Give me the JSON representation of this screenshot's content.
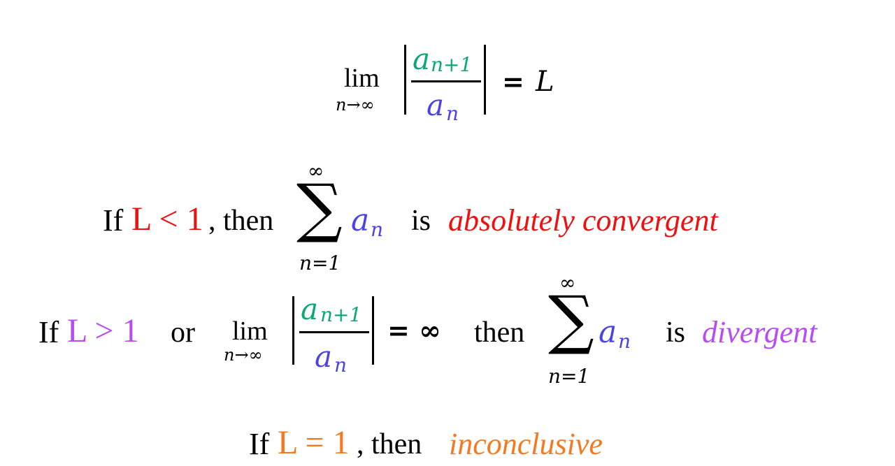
{
  "formula": {
    "lim_label": "lim",
    "lim_sub": "n→∞",
    "num": "a",
    "num_sub": "n+1",
    "den": "a",
    "den_sub": "n",
    "equals": "=",
    "rhs": "L"
  },
  "cases": [
    {
      "if": "If",
      "cond": "L < 1",
      "then": ", then",
      "sum_top": "∞",
      "sum_symbol": "∑",
      "sum_bottom": "n=1",
      "term": "a",
      "term_sub": "n",
      "is": "is",
      "result": "absolutely convergent",
      "color": "#f01010"
    },
    {
      "if": "If",
      "cond": "L > 1",
      "or": "or",
      "lim_label": "lim",
      "lim_sub": "n→∞",
      "num": "a",
      "num_sub": "n+1",
      "den": "a",
      "den_sub": "n",
      "equals": "= ∞",
      "then": "then",
      "sum_top": "∞",
      "sum_symbol": "∑",
      "sum_bottom": "n=1",
      "term": "a",
      "term_sub": "n",
      "is": "is",
      "result": "divergent",
      "color": "#b84cf2"
    },
    {
      "if": "If",
      "cond": "L = 1",
      "then": ", then",
      "result": "inconclusive",
      "color": "#f47a22"
    }
  ]
}
